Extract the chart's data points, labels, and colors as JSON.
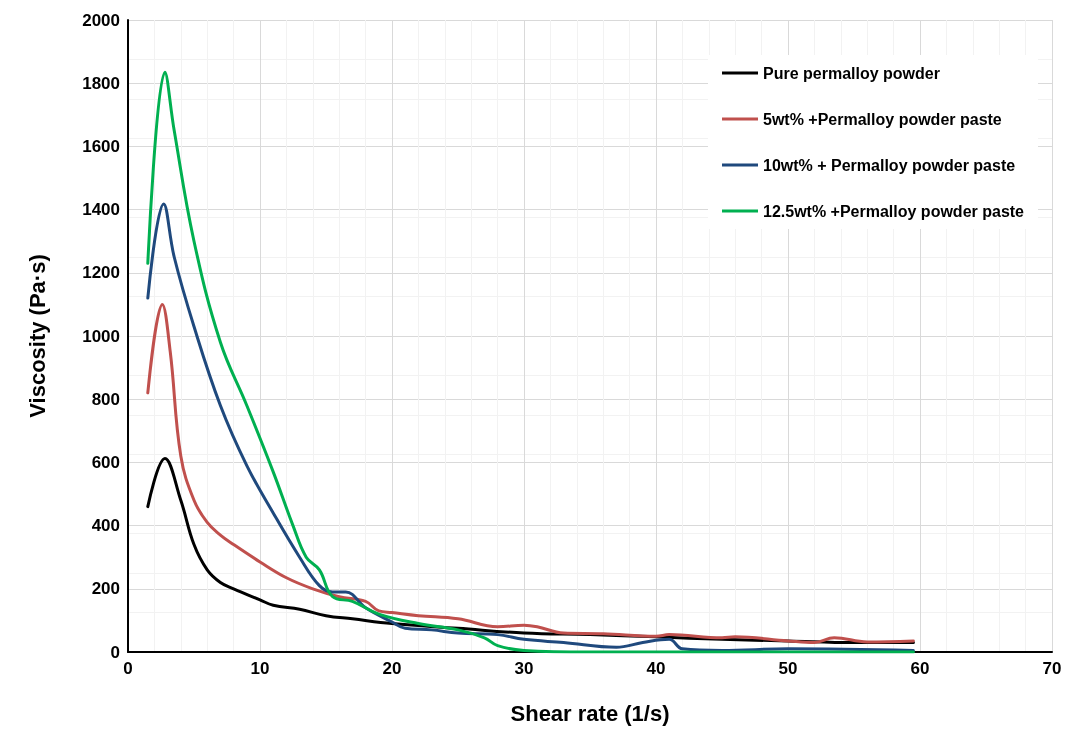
{
  "chart_data": {
    "type": "line",
    "xlabel": "Shear rate (1/s)",
    "ylabel": "Viscosity (Pa·s)",
    "xlim": [
      0,
      70
    ],
    "xticks": [
      0,
      10,
      20,
      30,
      40,
      50,
      60,
      70
    ],
    "ylim": [
      0,
      2000
    ],
    "yticks": [
      0,
      200,
      400,
      600,
      800,
      1000,
      1200,
      1400,
      1600,
      1800,
      2000
    ],
    "grid": true,
    "legend": "top right",
    "marker": "none",
    "line_style": "solid",
    "series": [
      {
        "name": "Pure permalloy powder",
        "color": "#000000",
        "x": [
          1.5,
          2.8,
          4,
          5,
          6,
          7,
          8,
          10,
          11,
          13,
          15,
          17,
          20,
          25,
          30,
          35,
          40,
          45,
          50,
          55,
          59.5
        ],
        "values": [
          460,
          612,
          480,
          340,
          260,
          220,
          200,
          165,
          148,
          135,
          115,
          105,
          90,
          75,
          60,
          55,
          48,
          40,
          35,
          30,
          30
        ]
      },
      {
        "name": "5wt% +Permalloy powder paste",
        "color": "#c0504d",
        "x": [
          1.5,
          2.6,
          3.2,
          4,
          5,
          6,
          7,
          8,
          10,
          12,
          14,
          16,
          18,
          19,
          20,
          22,
          25,
          28,
          30,
          31,
          33,
          36,
          40,
          41,
          45,
          46,
          50,
          52,
          53.5,
          56,
          59.5
        ],
        "values": [
          820,
          1100,
          950,
          620,
          480,
          410,
          370,
          340,
          285,
          235,
          200,
          175,
          160,
          130,
          125,
          115,
          105,
          80,
          85,
          80,
          60,
          58,
          50,
          55,
          45,
          48,
          35,
          30,
          45,
          32,
          35
        ]
      },
      {
        "name": "10wt% + Permalloy powder paste",
        "color": "#1f497d",
        "x": [
          1.5,
          2.7,
          3.5,
          5,
          7,
          9,
          11,
          13,
          14.5,
          15.5,
          16.5,
          18,
          20,
          21,
          23,
          25,
          28,
          30,
          33,
          37,
          39,
          41,
          42,
          45,
          50,
          59.5
        ],
        "values": [
          1120,
          1418,
          1250,
          1030,
          780,
          590,
          440,
          300,
          210,
          190,
          190,
          140,
          95,
          75,
          70,
          60,
          55,
          40,
          30,
          15,
          30,
          40,
          10,
          5,
          10,
          5
        ]
      },
      {
        "name": "12.5wt% +Permalloy powder paste",
        "color": "#00b050",
        "x": [
          1.5,
          2.8,
          3.5,
          5,
          7,
          9,
          11,
          12.5,
          13.5,
          14.5,
          15.5,
          17,
          19,
          22,
          25,
          27,
          28,
          30,
          35,
          45,
          59.5
        ],
        "values": [
          1230,
          1835,
          1650,
          1300,
          980,
          780,
          570,
          400,
          300,
          260,
          175,
          160,
          120,
          90,
          70,
          45,
          20,
          5,
          0,
          0,
          0
        ]
      }
    ]
  }
}
